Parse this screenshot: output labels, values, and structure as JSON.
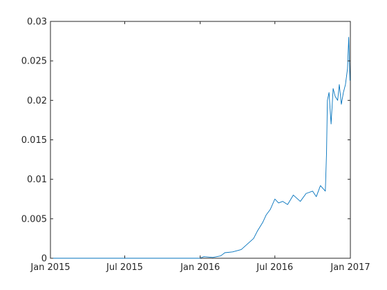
{
  "chart_data": {
    "type": "line",
    "title": "",
    "xlabel": "",
    "ylabel": "",
    "x_axis_type": "date",
    "xlim": [
      "2015-01-01",
      "2017-01-01"
    ],
    "ylim": [
      0,
      0.03
    ],
    "grid": false,
    "legend": "none",
    "line_color": "#0072BD",
    "x_ticks": [
      {
        "date": "2015-01-01",
        "label": "Jan 2015"
      },
      {
        "date": "2015-07-01",
        "label": "Jul 2015"
      },
      {
        "date": "2016-01-01",
        "label": "Jan 2016"
      },
      {
        "date": "2016-07-01",
        "label": "Jul 2016"
      },
      {
        "date": "2017-01-01",
        "label": "Jan 2017"
      }
    ],
    "y_ticks": [
      {
        "value": 0,
        "label": "0"
      },
      {
        "value": 0.005,
        "label": "0.005"
      },
      {
        "value": 0.01,
        "label": "0.01"
      },
      {
        "value": 0.015,
        "label": "0.015"
      },
      {
        "value": 0.02,
        "label": "0.02"
      },
      {
        "value": 0.025,
        "label": "0.025"
      },
      {
        "value": 0.03,
        "label": "0.03"
      }
    ],
    "series": [
      {
        "name": "",
        "x": [
          "2015-01-01",
          "2015-04-01",
          "2015-07-01",
          "2015-10-01",
          "2015-12-31",
          "2016-01-10",
          "2016-02-01",
          "2016-02-20",
          "2016-03-01",
          "2016-03-20",
          "2016-04-10",
          "2016-04-25",
          "2016-05-10",
          "2016-05-20",
          "2016-06-01",
          "2016-06-10",
          "2016-06-20",
          "2016-07-01",
          "2016-07-10",
          "2016-07-20",
          "2016-08-01",
          "2016-08-15",
          "2016-09-01",
          "2016-09-15",
          "2016-10-01",
          "2016-10-10",
          "2016-10-20",
          "2016-11-01",
          "2016-11-04",
          "2016-11-06",
          "2016-11-10",
          "2016-11-15",
          "2016-11-20",
          "2016-11-25",
          "2016-12-01",
          "2016-12-05",
          "2016-12-10",
          "2016-12-15",
          "2016-12-20",
          "2016-12-25",
          "2016-12-28",
          "2016-12-31"
        ],
        "y": [
          0,
          0,
          0,
          0,
          0,
          0.0002,
          0.0001,
          0.0003,
          0.0007,
          0.0008,
          0.0011,
          0.0018,
          0.0025,
          0.0035,
          0.0045,
          0.0055,
          0.0062,
          0.0075,
          0.007,
          0.0072,
          0.0068,
          0.008,
          0.0072,
          0.0082,
          0.0085,
          0.0078,
          0.0092,
          0.0085,
          0.0135,
          0.02,
          0.021,
          0.017,
          0.0215,
          0.0205,
          0.02,
          0.022,
          0.0195,
          0.021,
          0.022,
          0.024,
          0.028,
          0.0225
        ]
      }
    ]
  }
}
